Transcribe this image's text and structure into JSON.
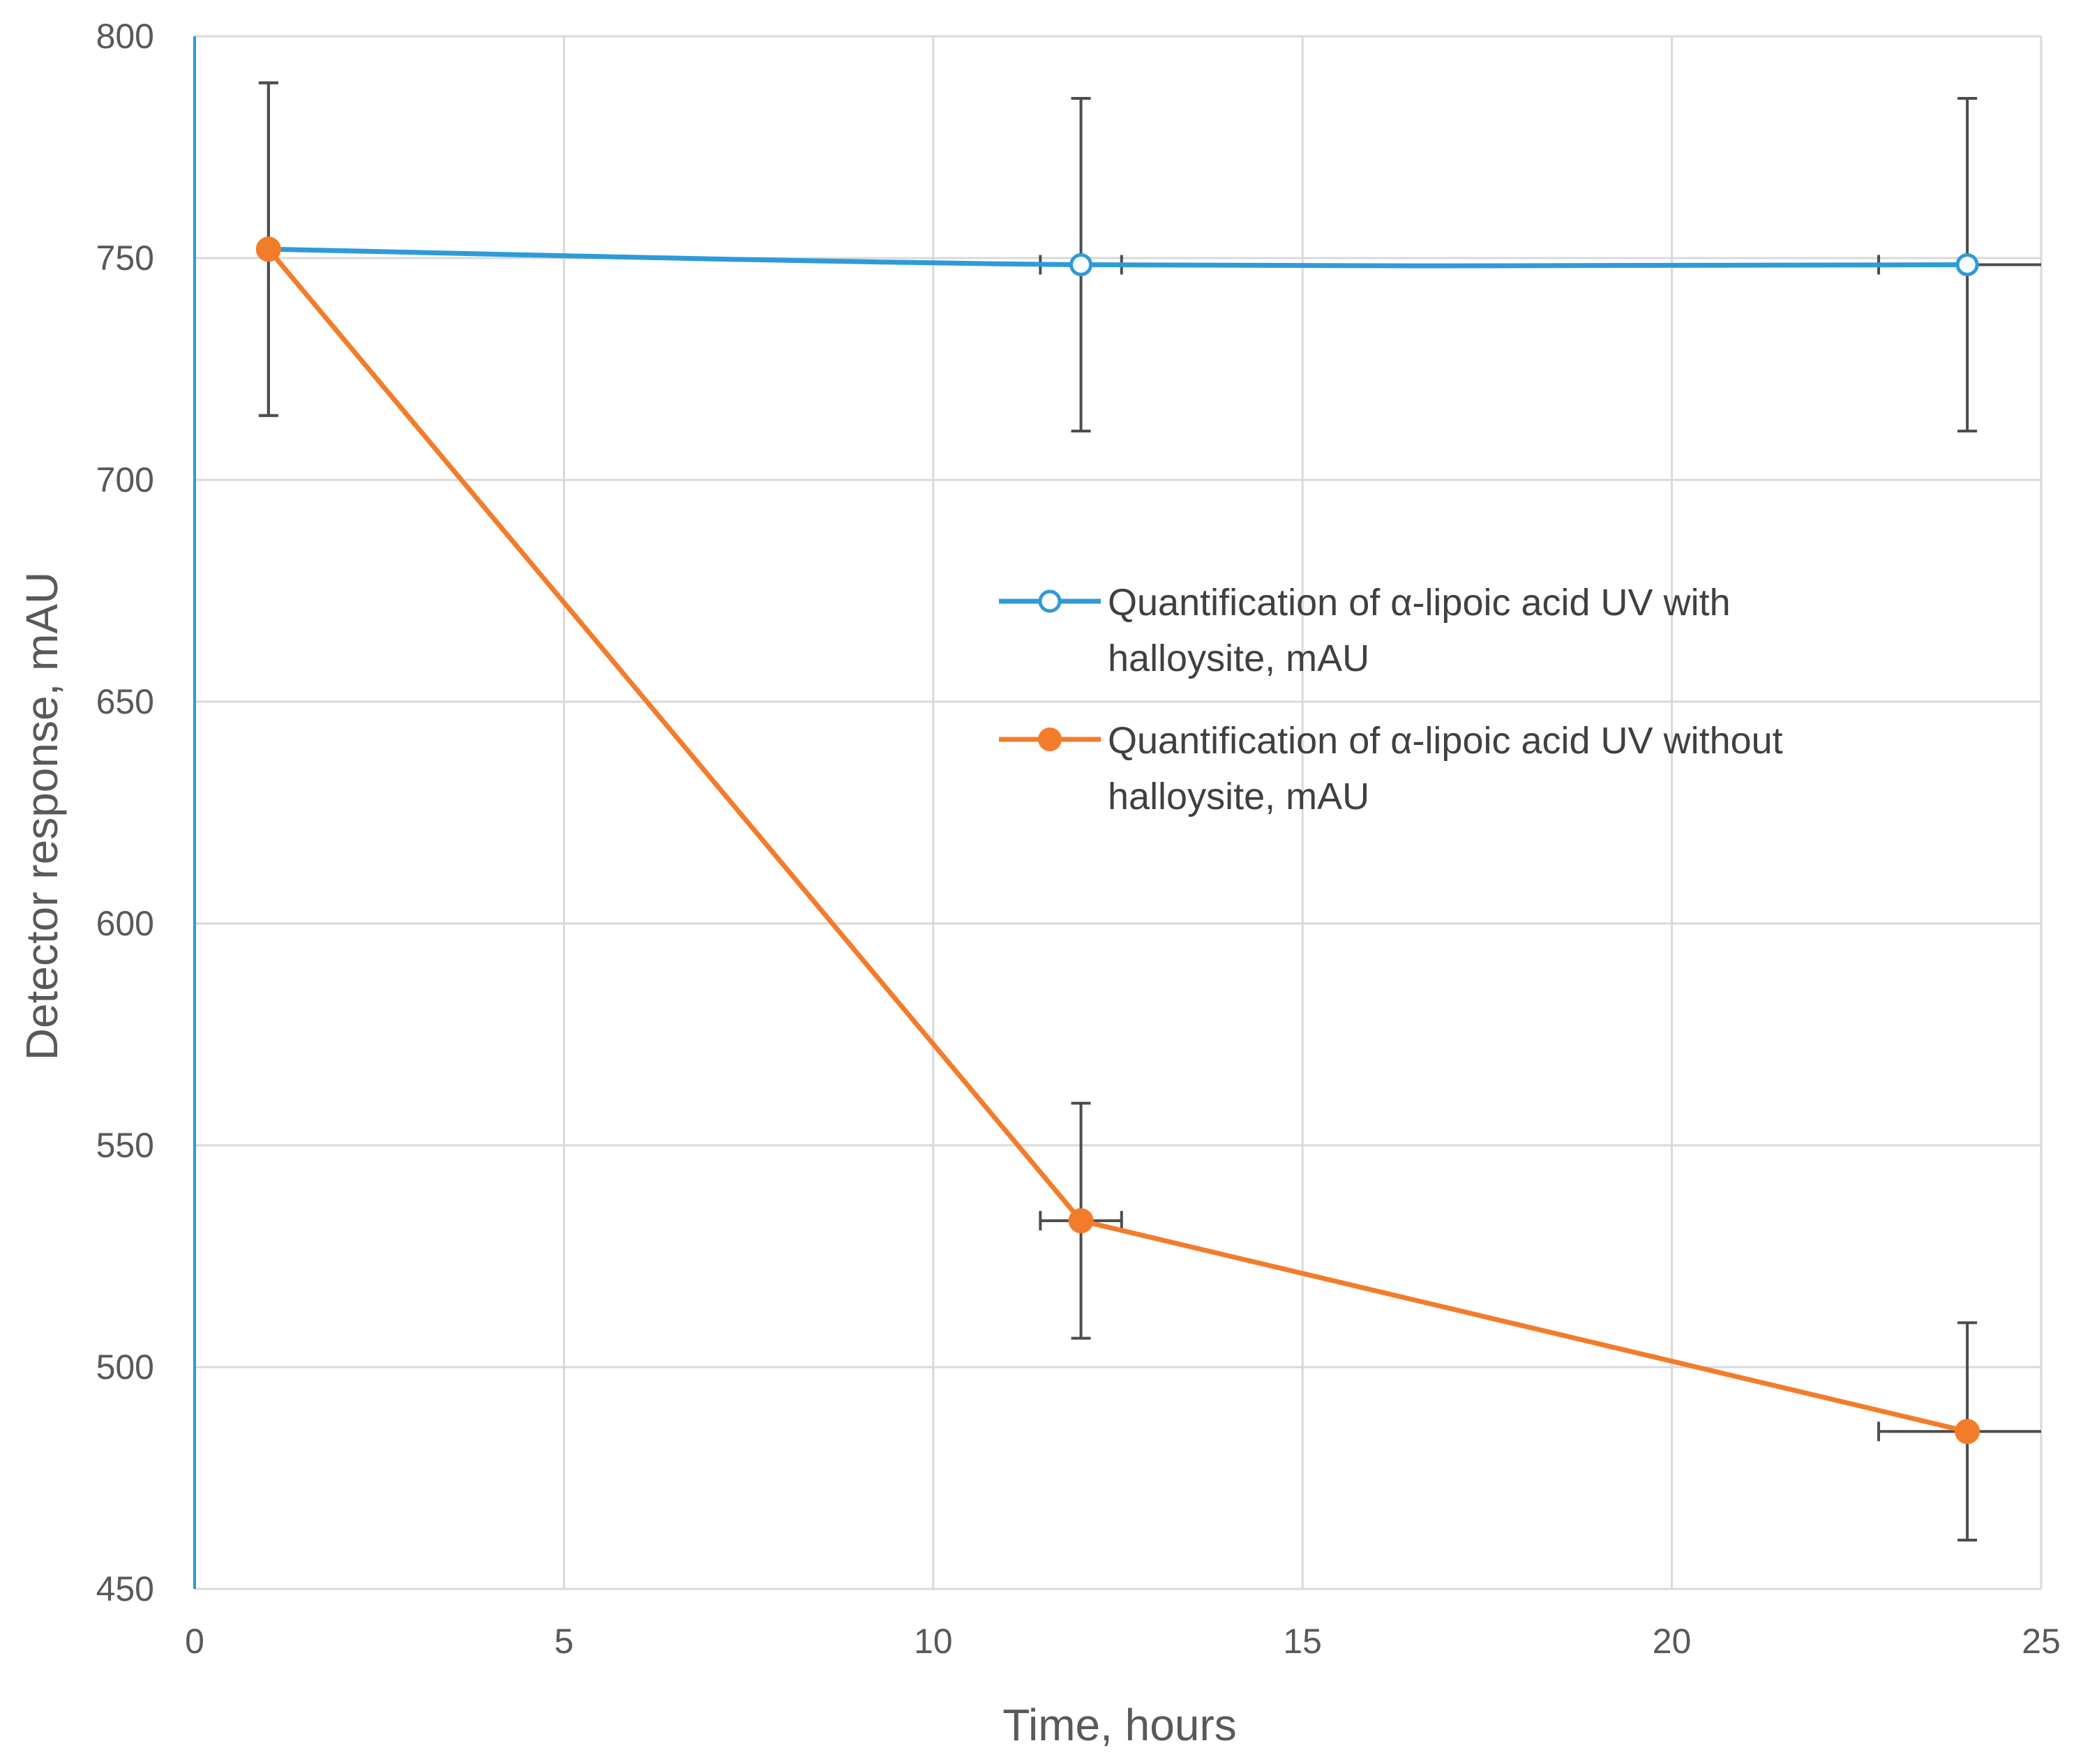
{
  "chart_data": {
    "type": "scatter",
    "xlabel": "Time, hours",
    "ylabel": "Detector response, mAU",
    "xlim": [
      0,
      25
    ],
    "ylim": [
      450,
      800
    ],
    "x_ticks": [
      0,
      5,
      10,
      15,
      20,
      25
    ],
    "y_ticks": [
      450,
      500,
      550,
      600,
      650,
      700,
      750,
      800
    ],
    "grid": true,
    "legend_position": "right-middle",
    "series": [
      {
        "name_lines": [
          "Quantification of α-lipoic acid UV with",
          "halloysite, mAU"
        ],
        "color": "#2E9BD9",
        "marker": "open-circle",
        "line": "smooth",
        "points": [
          {
            "x": 1,
            "y": 752,
            "y_err": 37.5,
            "x_err": 0
          },
          {
            "x": 12,
            "y": 748.5,
            "y_err": 37.5,
            "x_err": 0.55
          },
          {
            "x": 24,
            "y": 748.5,
            "y_err": 37.5,
            "x_err": 1.2
          }
        ]
      },
      {
        "name_lines": [
          "Quantification of α-lipoic acid UV without",
          "halloysite, mAU"
        ],
        "color": "#F37C2A",
        "marker": "filled-circle",
        "line": "straight",
        "points": [
          {
            "x": 1,
            "y": 752,
            "y_err": 37.5,
            "x_err": 0
          },
          {
            "x": 12,
            "y": 533,
            "y_err": 26.5,
            "x_err": 0.55
          },
          {
            "x": 24,
            "y": 485.5,
            "y_err": 24.5,
            "x_err": 1.2
          }
        ]
      }
    ],
    "error_bar_color": "#4D4D4D",
    "grid_color": "#D9D9D9",
    "y_axis_color": "#2E9BD9"
  }
}
